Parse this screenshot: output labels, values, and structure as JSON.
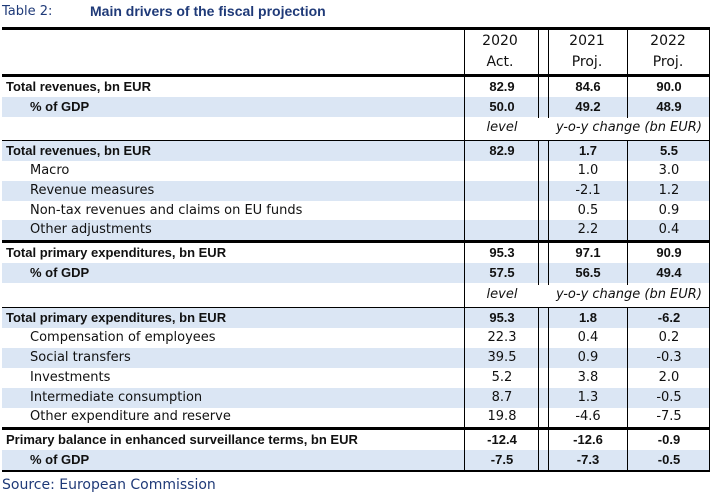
{
  "table_label": "Table 2:",
  "title": "Main drivers of the fiscal projection",
  "columns": [
    {
      "year": "2020",
      "status": "Act."
    },
    {
      "year": "2021",
      "status": "Proj."
    },
    {
      "year": "2022",
      "status": "Proj."
    }
  ],
  "rows": [
    {
      "label": "Total revenues, bn EUR",
      "v": [
        "82.9",
        "84.6",
        "90.0"
      ]
    },
    {
      "label": "% of GDP",
      "v": [
        "50.0",
        "49.2",
        "48.9"
      ]
    },
    {
      "label": "",
      "v": [
        "level",
        "y-o-y change (bn EUR)",
        ""
      ]
    },
    {
      "label": "Total revenues, bn EUR",
      "v": [
        "82.9",
        "1.7",
        "5.5"
      ]
    },
    {
      "label": "Macro",
      "v": [
        "",
        "1.0",
        "3.0"
      ]
    },
    {
      "label": "Revenue measures",
      "v": [
        "",
        "-2.1",
        "1.2"
      ]
    },
    {
      "label": "Non-tax revenues and claims on EU funds",
      "v": [
        "",
        "0.5",
        "0.9"
      ]
    },
    {
      "label": "Other adjustments",
      "v": [
        "",
        "2.2",
        "0.4"
      ]
    },
    {
      "label": "Total  primary expenditures, bn EUR",
      "v": [
        "95.3",
        "97.1",
        "90.9"
      ]
    },
    {
      "label": "% of GDP",
      "v": [
        "57.5",
        "56.5",
        "49.4"
      ]
    },
    {
      "label": "",
      "v": [
        "level",
        "y-o-y change (bn EUR)",
        ""
      ]
    },
    {
      "label": "Total primary expenditures, bn EUR",
      "v": [
        "95.3",
        "1.8",
        "-6.2"
      ]
    },
    {
      "label": "Compensation of employees",
      "v": [
        "22.3",
        "0.4",
        "0.2"
      ]
    },
    {
      "label": "Social transfers",
      "v": [
        "39.5",
        "0.9",
        "-0.3"
      ]
    },
    {
      "label": "Investments",
      "v": [
        "5.2",
        "3.8",
        "2.0"
      ]
    },
    {
      "label": "Intermediate consumption",
      "v": [
        "8.7",
        "1.3",
        "-0.5"
      ]
    },
    {
      "label": "Other expenditure and reserve",
      "v": [
        "19.8",
        "-4.6",
        "-7.5"
      ]
    },
    {
      "label": "Primary balance in enhanced surveillance terms, bn EUR",
      "v": [
        "-12.4",
        "-12.6",
        "-0.9"
      ]
    },
    {
      "label": "% of GDP",
      "v": [
        "-7.5",
        "-7.3",
        "-0.5"
      ]
    }
  ],
  "source": "Source: European Commission"
}
